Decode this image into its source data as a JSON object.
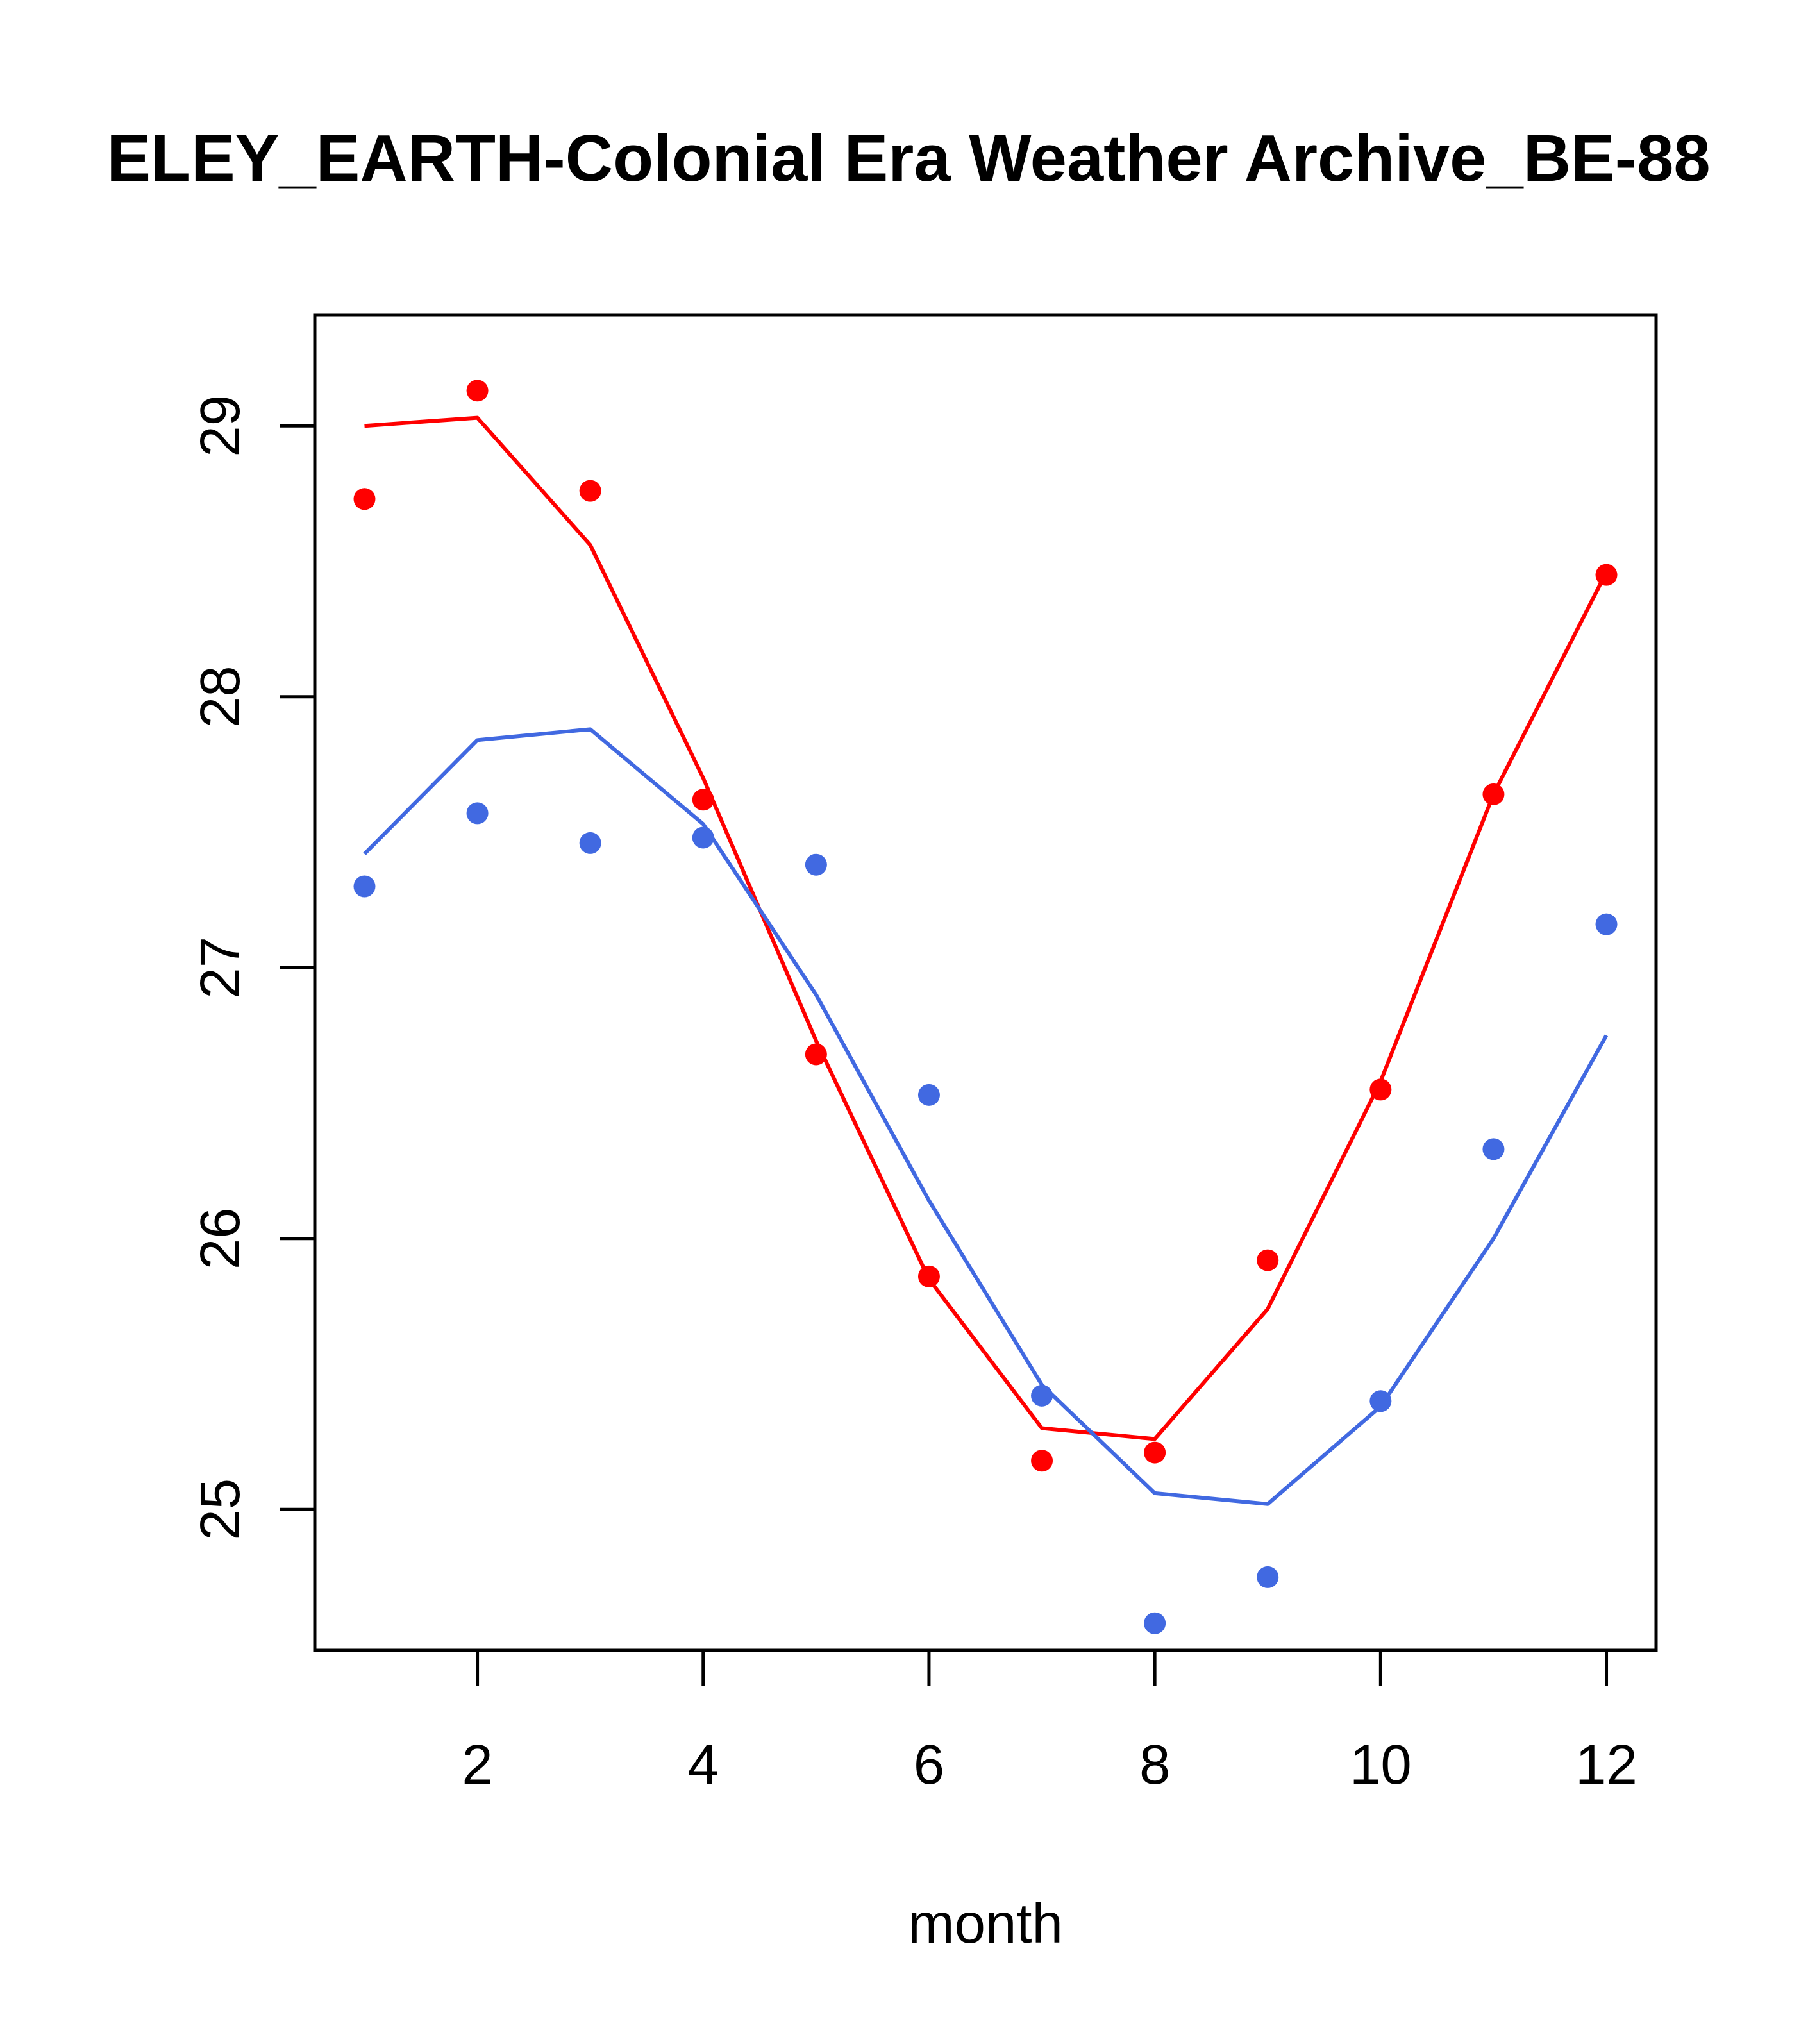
{
  "chart_data": {
    "type": "line",
    "title": "ELEY_EARTH-Colonial Era Weather Archive_BE-88",
    "xlabel": "month",
    "ylabel": "",
    "x": [
      1,
      2,
      3,
      4,
      5,
      6,
      7,
      8,
      9,
      10,
      11,
      12
    ],
    "xlim": [
      0.56,
      12.44
    ],
    "ylim": [
      24.48,
      29.41
    ],
    "xticks": [
      2,
      4,
      6,
      8,
      10,
      12
    ],
    "yticks": [
      25,
      26,
      27,
      28,
      29
    ],
    "xtick_labels": [
      "2",
      "4",
      "6",
      "8",
      "10",
      "12"
    ],
    "ytick_labels": [
      "25",
      "26",
      "27",
      "28",
      "29"
    ],
    "grid": false,
    "series": [
      {
        "color": "#ff0000",
        "points": [
          28.73,
          29.13,
          28.76,
          27.62,
          26.68,
          25.86,
          25.18,
          25.21,
          25.92,
          26.55,
          27.64,
          28.45
        ],
        "line": [
          29.0,
          29.03,
          28.56,
          27.7,
          26.73,
          25.85,
          25.3,
          25.26,
          25.74,
          26.58,
          27.64,
          28.46
        ]
      },
      {
        "color": "#4169e1",
        "points": [
          27.3,
          27.57,
          27.46,
          27.48,
          27.38,
          26.53,
          25.42,
          24.58,
          24.75,
          25.4,
          26.33,
          27.16
        ],
        "line": [
          27.42,
          27.84,
          27.88,
          27.53,
          26.9,
          26.14,
          25.46,
          25.06,
          25.02,
          25.38,
          26.0,
          26.75
        ]
      }
    ]
  }
}
